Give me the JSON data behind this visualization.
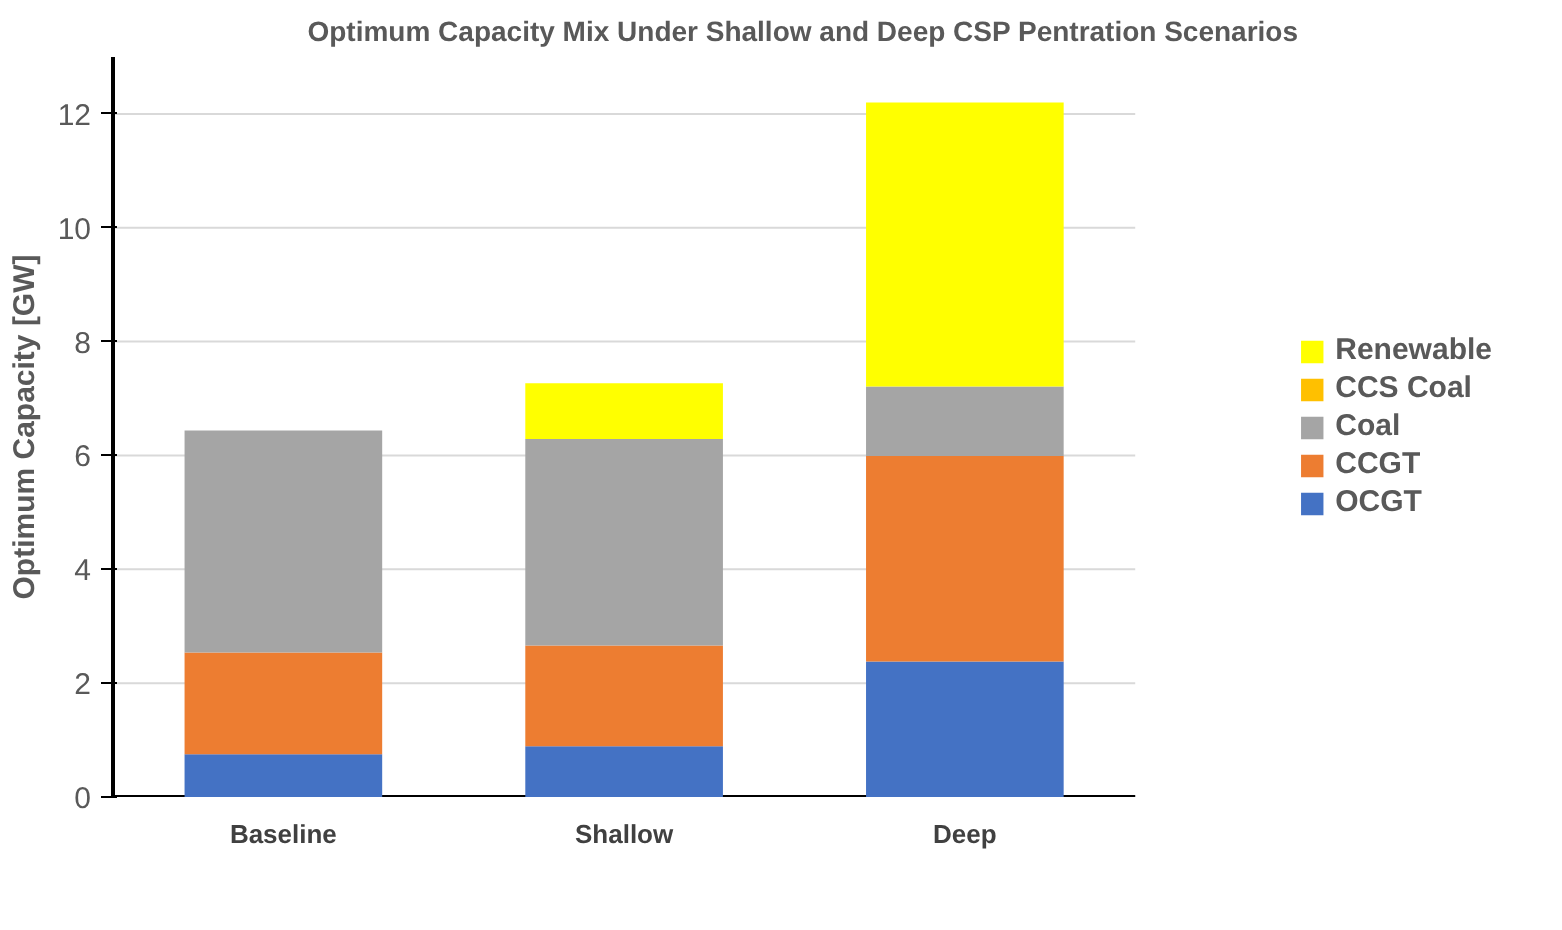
{
  "chart_data": {
    "type": "bar",
    "stacked": true,
    "title": "Optimum Capacity Mix Under Shallow and Deep CSP Pentration Scenarios",
    "ylabel": "Optimum Capacity [GW]",
    "categories": [
      "Baseline",
      "Shallow",
      "Deep"
    ],
    "series": [
      {
        "name": "OCGT",
        "color": "#4472c4",
        "values": [
          0.75,
          0.89,
          2.38
        ]
      },
      {
        "name": "CCGT",
        "color": "#ed7d31",
        "values": [
          1.79,
          1.77,
          3.61
        ]
      },
      {
        "name": "Coal",
        "color": "#a5a5a5",
        "values": [
          3.9,
          3.63,
          1.22
        ]
      },
      {
        "name": "CCS Coal",
        "color": "#ffc000",
        "values": [
          0,
          0,
          0
        ]
      },
      {
        "name": "Renewable",
        "color": "#ffff00",
        "values": [
          0,
          0.98,
          4.99
        ]
      }
    ],
    "ylim": [
      0,
      13
    ],
    "yticks": [
      0,
      2,
      4,
      6,
      8,
      10,
      12
    ],
    "grid": "y",
    "legend": "right"
  }
}
